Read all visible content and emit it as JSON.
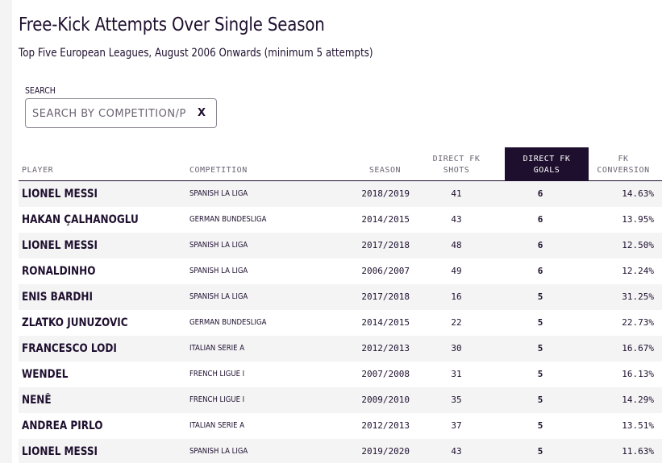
{
  "header": {
    "title": "Free-Kick Attempts Over Single Season",
    "subtitle": "Top Five European Leagues, August 2006 Onwards (minimum 5 attempts)"
  },
  "search": {
    "label": "SEARCH",
    "placeholder": "SEARCH BY COMPETITION/PLAYER",
    "value": "",
    "clear_label": "X"
  },
  "table": {
    "columns": {
      "player": "PLAYER",
      "competition": "COMPETITION",
      "season": "SEASON",
      "shots_line1": "DIRECT FK",
      "shots_line2": "SHOTS",
      "goals_line1": "DIRECT FK",
      "goals_line2": "GOALS",
      "conversion_line1": "FK",
      "conversion_line2": "CONVERSION"
    },
    "sorted_column": "goals",
    "rows": [
      {
        "player": "LIONEL MESSI",
        "competition": "SPANISH LA LIGA",
        "season": "2018/2019",
        "shots": "41",
        "goals": "6",
        "conversion": "14.63%"
      },
      {
        "player": "HAKAN ÇALHANOGLU",
        "competition": "GERMAN BUNDESLIGA",
        "season": "2014/2015",
        "shots": "43",
        "goals": "6",
        "conversion": "13.95%"
      },
      {
        "player": "LIONEL MESSI",
        "competition": "SPANISH LA LIGA",
        "season": "2017/2018",
        "shots": "48",
        "goals": "6",
        "conversion": "12.50%"
      },
      {
        "player": "RONALDINHO",
        "competition": "SPANISH LA LIGA",
        "season": "2006/2007",
        "shots": "49",
        "goals": "6",
        "conversion": "12.24%"
      },
      {
        "player": "ENIS BARDHI",
        "competition": "SPANISH LA LIGA",
        "season": "2017/2018",
        "shots": "16",
        "goals": "5",
        "conversion": "31.25%"
      },
      {
        "player": "ZLATKO JUNUZOVIC",
        "competition": "GERMAN BUNDESLIGA",
        "season": "2014/2015",
        "shots": "22",
        "goals": "5",
        "conversion": "22.73%"
      },
      {
        "player": "FRANCESCO LODI",
        "competition": "ITALIAN SERIE A",
        "season": "2012/2013",
        "shots": "30",
        "goals": "5",
        "conversion": "16.67%"
      },
      {
        "player": "WENDEL",
        "competition": "FRENCH LIGUE I",
        "season": "2007/2008",
        "shots": "31",
        "goals": "5",
        "conversion": "16.13%"
      },
      {
        "player": "NENÊ",
        "competition": "FRENCH LIGUE I",
        "season": "2009/2010",
        "shots": "35",
        "goals": "5",
        "conversion": "14.29%"
      },
      {
        "player": "ANDREA PIRLO",
        "competition": "ITALIAN SERIE A",
        "season": "2012/2013",
        "shots": "37",
        "goals": "5",
        "conversion": "13.51%"
      },
      {
        "player": "LIONEL MESSI",
        "competition": "SPANISH LA LIGA",
        "season": "2019/2020",
        "shots": "43",
        "goals": "5",
        "conversion": "11.63%"
      }
    ]
  },
  "colors": {
    "ink": "#1e0f2e",
    "header_highlight": "#1e0f2e",
    "row_stripe": "#f4f4f5",
    "muted": "#6b6472"
  }
}
